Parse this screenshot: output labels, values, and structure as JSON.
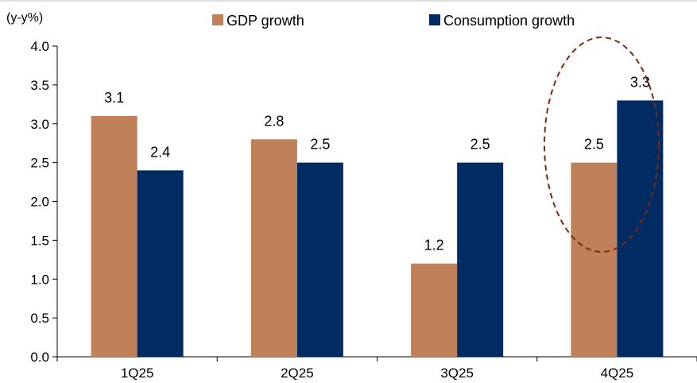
{
  "chart_data": {
    "type": "bar",
    "ylabel": "(y-y%)",
    "categories": [
      "1Q25",
      "2Q25",
      "3Q25",
      "4Q25"
    ],
    "series": [
      {
        "name": "GDP growth",
        "values": [
          3.1,
          2.8,
          1.2,
          2.5
        ],
        "labels": [
          "3.1",
          "2.8",
          "1.2",
          "2.5"
        ],
        "color": "#C0805A"
      },
      {
        "name": "Consumption growth",
        "values": [
          2.4,
          2.5,
          2.5,
          3.3
        ],
        "labels": [
          "2.4",
          "2.5",
          "2.5",
          "3.3"
        ],
        "color": "#002B63"
      }
    ],
    "ylim": [
      0,
      4
    ],
    "yticks": [
      "0.0",
      "0.5",
      "1.0",
      "1.5",
      "2.0",
      "2.5",
      "3.0",
      "3.5",
      "4.0"
    ],
    "grid": false,
    "legend_position": "top",
    "highlight": {
      "category": "4Q25",
      "shape": "dashed-ellipse",
      "color": "#7B2A12"
    }
  }
}
